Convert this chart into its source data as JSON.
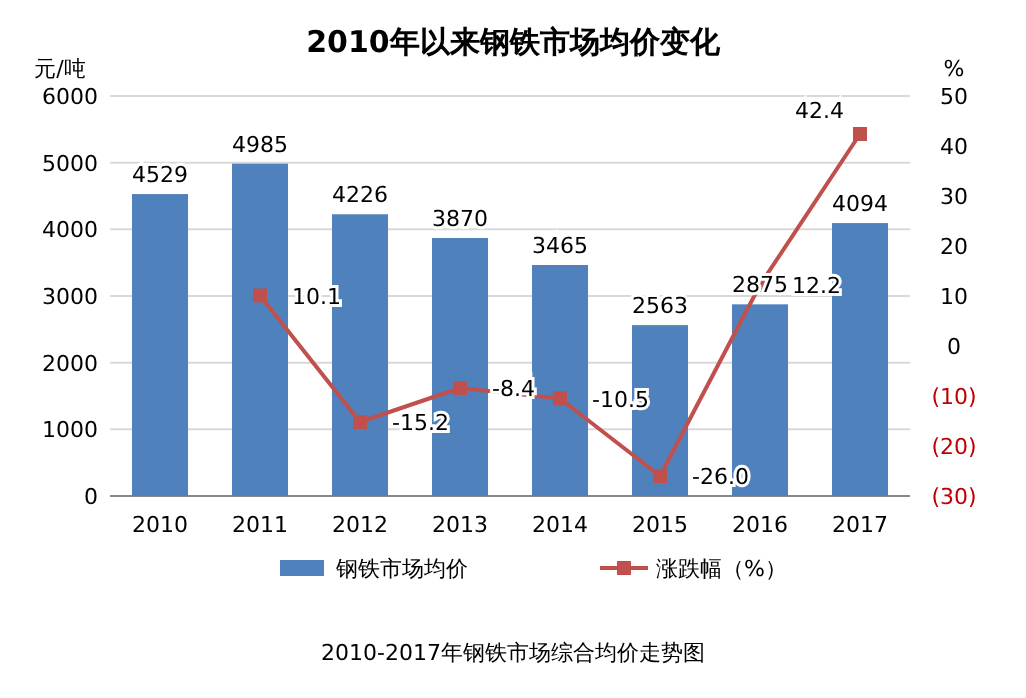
{
  "chart_data": {
    "type": "bar",
    "title": "2010年以来钢铁市场均价变化",
    "categories": [
      "2010",
      "2011",
      "2012",
      "2013",
      "2014",
      "2015",
      "2016",
      "2017"
    ],
    "series": [
      {
        "name": "钢铁市场均价",
        "color": "#4f81bd",
        "values": [
          4529,
          4985,
          4226,
          3870,
          3465,
          2563,
          2875,
          4094
        ]
      },
      {
        "name": "涨跌幅（%）",
        "type": "line",
        "axis": "y2",
        "color": "#c0504d",
        "marker": "square",
        "values": [
          null,
          10.1,
          -15.2,
          -8.4,
          -10.5,
          -26.0,
          12.2,
          42.4
        ],
        "value_labels": [
          null,
          "10.1",
          "-15.2",
          "-8.4",
          "-10.5",
          "-26.0",
          "12.2",
          "42.4"
        ]
      }
    ],
    "ylabel": "元/吨",
    "y2label": "%",
    "ylim": [
      0,
      6000
    ],
    "yticks": [
      0,
      1000,
      2000,
      3000,
      4000,
      5000,
      6000
    ],
    "y2lim": [
      -30,
      50
    ],
    "y2ticks": [
      {
        "value": -30,
        "label": "(30)"
      },
      {
        "value": -20,
        "label": "(20)"
      },
      {
        "value": -10,
        "label": "(10)"
      },
      0,
      10,
      20,
      30,
      40,
      50
    ],
    "data_labels": true,
    "grid": "y",
    "legend": "bottom",
    "annotations": [
      "2010-2017年钢铁市场综合均价走势图"
    ]
  }
}
